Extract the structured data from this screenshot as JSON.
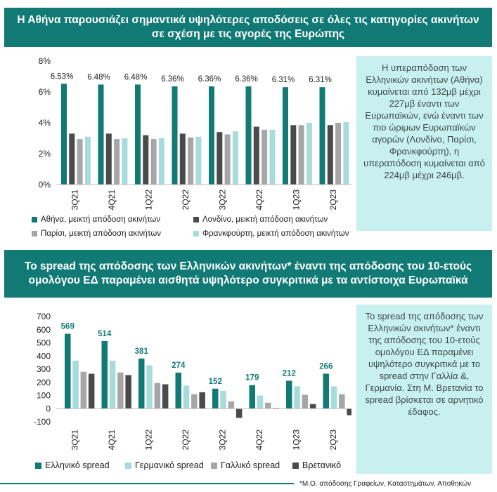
{
  "banner1": "Η Αθήνα παρουσιάζει σημαντικά υψηλότερες αποδόσεις σε όλες τις κατηγορίες ακινήτων σε σχέση με τις αγορές της Ευρώπης",
  "note1": "Η υπεραπόδοση των Ελληνικών ακινήτων (Αθήνα) κυμαίνεται από 132μβ μέχρι 227μβ έναντι των Ευρωπαϊκών, ενώ έναντι των πιο ώριμων Ευρωπαϊκών αγορών (Λονδίνο, Παρίσι, Φρανκφούρτη), η υπεραπόδοση κυμαίνεται από 224μβ μέχρι 246μβ.",
  "banner2": "Το spread της απόδοσης των Ελληνικών ακινήτων* έναντι της απόδοσης του 10-ετούς ομολόγου ΕΔ παραμένει αισθητά υψηλότερο συγκριτικά με τα αντίστοιχα Ευρωπαϊκά",
  "note2": "Το spread της απόδοσης των Ελληνικών ακινήτων* έναντι της απόδοσης του 10-ετούς ομολόγου ΕΔ παραμένει υψηλότερο συγκριτικά με το spread στην Γαλλία &, Γερμανία. Στη Μ. Βρετανία το spread βρίσκεται σε αρνητικό έδαφος.",
  "footnote": "*Μ.Ο. απόδοσης Γραφείων, Καταστημάτων, Αποθηκών",
  "colors": {
    "teal": "#117a75",
    "dark_gray": "#4a4a4a",
    "gray": "#a6a6a6",
    "light_teal": "#a8dcdc",
    "note_bg": "#c8f0ee"
  },
  "chart_data": [
    {
      "type": "bar",
      "categories": [
        "3Q21",
        "4Q21",
        "1Q22",
        "2Q22",
        "3Q22",
        "4Q22",
        "1Q23",
        "2Q23"
      ],
      "ylim": [
        0,
        8
      ],
      "yticks": [
        "0%",
        "2%",
        "4%",
        "6%",
        "8%"
      ],
      "data_labels": [
        "6.53%",
        "6.48%",
        "6.48%",
        "6.36%",
        "6.36%",
        "6.36%",
        "6.31%",
        "6.31%"
      ],
      "legend_position": "bottom",
      "grid": false,
      "series": [
        {
          "name": "Αθήνα, μεικτή απόδοση ακινήτων",
          "color": "#117a75",
          "values": [
            6.53,
            6.48,
            6.48,
            6.36,
            6.36,
            6.36,
            6.31,
            6.31
          ]
        },
        {
          "name": "Λονδίνο, μεικτή απόδοση ακινήτων",
          "color": "#4a4a4a",
          "values": [
            3.3,
            3.3,
            3.2,
            3.3,
            3.4,
            3.75,
            3.85,
            3.85
          ]
        },
        {
          "name": "Παρίσι, μεικτή απόδοση ακινήτων",
          "color": "#a6a6a6",
          "values": [
            2.95,
            2.95,
            2.95,
            3.05,
            3.25,
            3.55,
            3.85,
            4.0
          ]
        },
        {
          "name": "Φρανκφούρτη, μεικτή απόδοση ακινήτων",
          "color": "#a8dcdc",
          "values": [
            3.1,
            3.0,
            3.0,
            3.1,
            3.45,
            3.55,
            4.0,
            4.05
          ]
        }
      ]
    },
    {
      "type": "bar",
      "categories": [
        "3Q21",
        "4Q21",
        "1Q22",
        "2Q22",
        "3Q22",
        "4Q22",
        "1Q23",
        "2Q23"
      ],
      "ylim": [
        -100,
        700
      ],
      "yticks": [
        "-100",
        "0",
        "100",
        "200",
        "300",
        "400",
        "500",
        "600",
        "700"
      ],
      "data_labels": [
        "569",
        "514",
        "381",
        "274",
        "152",
        "179",
        "212",
        "266"
      ],
      "legend_position": "bottom",
      "grid": false,
      "series": [
        {
          "name": "Ελληνικό spread",
          "color": "#117a75",
          "values": [
            569,
            514,
            381,
            274,
            152,
            179,
            212,
            266
          ]
        },
        {
          "name": "Γερμανικό spread",
          "color": "#a8dcdc",
          "values": [
            365,
            365,
            330,
            175,
            135,
            100,
            170,
            170
          ]
        },
        {
          "name": "Γαλλικό spread",
          "color": "#a6a6a6",
          "values": [
            280,
            275,
            195,
            110,
            55,
            45,
            105,
            110
          ]
        },
        {
          "name": "Βρετανικό",
          "color": "#4a4a4a",
          "values": [
            265,
            255,
            185,
            125,
            -70,
            5,
            35,
            -50
          ]
        }
      ]
    }
  ]
}
